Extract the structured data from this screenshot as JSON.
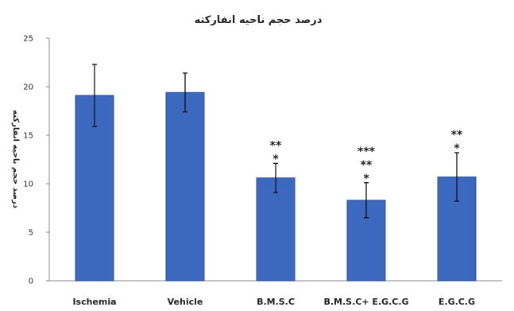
{
  "chart_data": {
    "type": "bar",
    "title": "درصد حجم ناحیه انفارکته",
    "ylabel": "درصد حجم ناحیه انفارکته",
    "xlabel": "",
    "ylim": [
      0,
      25
    ],
    "yticks": [
      0,
      5,
      10,
      15,
      20,
      25
    ],
    "categories": [
      "Ischemia",
      "Vehicle",
      "B.M.S.C",
      "B.M.S.C+ E.G.C.G",
      "E.G.C.G"
    ],
    "values": [
      19.1,
      19.4,
      10.6,
      8.3,
      10.7
    ],
    "errors": [
      3.2,
      2.0,
      1.5,
      1.8,
      2.5
    ],
    "annotations": [
      [],
      [],
      [
        "**",
        "*"
      ],
      [
        "***",
        "**",
        "*"
      ],
      [
        "**",
        "*"
      ]
    ],
    "grid": false,
    "colors": {
      "bar": "#3c68c0",
      "bar_edge": "#2b4e96",
      "axis": "#888888",
      "error": "#111111"
    }
  }
}
